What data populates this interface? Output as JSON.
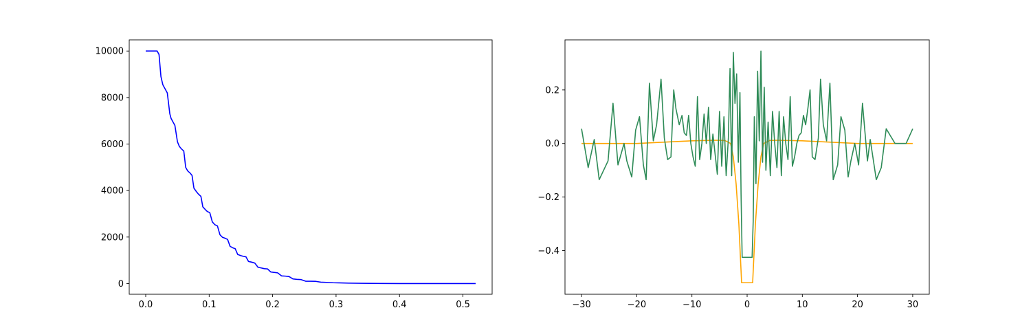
{
  "chart_data": [
    {
      "type": "line",
      "title": "",
      "xlabel": "",
      "ylabel": "",
      "xlim": [
        -0.026,
        0.546
      ],
      "ylim": [
        -460,
        10480
      ],
      "x_ticks": [
        0.0,
        0.1,
        0.2,
        0.3,
        0.4,
        0.5
      ],
      "x_tick_labels": [
        "0.0",
        "0.1",
        "0.2",
        "0.3",
        "0.4",
        "0.5"
      ],
      "y_ticks": [
        0,
        2000,
        4000,
        6000,
        8000,
        10000
      ],
      "y_tick_labels": [
        "0",
        "2000",
        "4000",
        "6000",
        "8000",
        "10000"
      ],
      "grid": false,
      "legend": "none",
      "series": [
        {
          "color": "#0000ff",
          "x": [
            0.0,
            0.018,
            0.021,
            0.024,
            0.027,
            0.03,
            0.034,
            0.038,
            0.04,
            0.043,
            0.046,
            0.05,
            0.053,
            0.056,
            0.06,
            0.063,
            0.066,
            0.07,
            0.073,
            0.076,
            0.08,
            0.083,
            0.087,
            0.09,
            0.094,
            0.097,
            0.101,
            0.105,
            0.109,
            0.113,
            0.117,
            0.121,
            0.125,
            0.129,
            0.133,
            0.137,
            0.141,
            0.145,
            0.15,
            0.154,
            0.158,
            0.162,
            0.167,
            0.172,
            0.177,
            0.182,
            0.187,
            0.192,
            0.197,
            0.202,
            0.208,
            0.214,
            0.22,
            0.226,
            0.232,
            0.238,
            0.245,
            0.252,
            0.26,
            0.268,
            0.276,
            0.285,
            0.295,
            0.305,
            0.32,
            0.34,
            0.37,
            0.4,
            0.45,
            0.52
          ],
          "y": [
            10000,
            10000,
            9850,
            8900,
            8550,
            8400,
            8200,
            7300,
            7100,
            6950,
            6800,
            6100,
            5900,
            5800,
            5700,
            5000,
            4850,
            4750,
            4650,
            4100,
            3950,
            3850,
            3750,
            3300,
            3180,
            3100,
            3050,
            2650,
            2530,
            2480,
            2100,
            1990,
            1950,
            1900,
            1600,
            1540,
            1500,
            1250,
            1200,
            1170,
            1150,
            950,
            920,
            880,
            700,
            670,
            640,
            630,
            500,
            480,
            460,
            330,
            320,
            300,
            200,
            180,
            170,
            100,
            100,
            95,
            60,
            50,
            35,
            30,
            20,
            10,
            5,
            0,
            0,
            0
          ]
        }
      ]
    },
    {
      "type": "line",
      "title": "",
      "xlabel": "",
      "ylabel": "",
      "xlim": [
        -33,
        33
      ],
      "ylim": [
        -0.563,
        0.387
      ],
      "x_ticks": [
        -30,
        -20,
        -10,
        0,
        10,
        20,
        30
      ],
      "x_tick_labels": [
        "−30",
        "−20",
        "−10",
        "0",
        "10",
        "20",
        "30"
      ],
      "y_ticks": [
        -0.4,
        -0.2,
        0.0,
        0.2
      ],
      "y_tick_labels": [
        "−0.4",
        "−0.2",
        "0.0",
        "0.2"
      ],
      "grid": false,
      "legend": "none",
      "series": [
        {
          "color": "#ffa500",
          "x": [
            -30,
            -20,
            -10,
            -6,
            -5,
            -4,
            -3,
            -2.5,
            -2,
            -1.5,
            -1,
            1,
            1.5,
            2,
            2.5,
            3,
            4,
            5,
            6,
            10,
            20,
            30
          ],
          "y": [
            0.0,
            0.0,
            0.01,
            0.012,
            0.012,
            0.011,
            0.0,
            -0.05,
            -0.15,
            -0.3,
            -0.52,
            -0.52,
            -0.3,
            -0.15,
            -0.05,
            0.0,
            0.011,
            0.012,
            0.012,
            0.01,
            0.0,
            0.0
          ]
        },
        {
          "color": "#2e8b57",
          "x": [
            -30,
            -28.8,
            -27.7,
            -26.8,
            -25.2,
            -24.3,
            -23.4,
            -22.3,
            -21.8,
            -20.9,
            -20.2,
            -19.5,
            -18.8,
            -18.3,
            -17.7,
            -17.0,
            -16.4,
            -15.6,
            -15.0,
            -14.4,
            -13.8,
            -13.3,
            -12.9,
            -12.3,
            -11.8,
            -11.4,
            -11.0,
            -10.6,
            -10.2,
            -9.8,
            -9.4,
            -9.0,
            -8.6,
            -8.2,
            -7.8,
            -7.4,
            -7.0,
            -6.6,
            -6.2,
            -5.8,
            -5.4,
            -5.0,
            -4.6,
            -4.2,
            -3.8,
            -3.4,
            -3.1,
            -2.8,
            -2.5,
            -2.2,
            -1.9,
            -1.6,
            -1.3,
            -1.1,
            -0.9,
            0.9,
            1.1,
            1.3,
            1.6,
            1.9,
            2.2,
            2.5,
            2.8,
            3.1,
            3.4,
            3.8,
            4.2,
            4.6,
            5.0,
            5.4,
            5.8,
            6.2,
            6.6,
            7.0,
            7.4,
            7.8,
            8.2,
            8.6,
            9.0,
            9.4,
            9.8,
            10.2,
            10.6,
            11.0,
            11.4,
            11.8,
            12.3,
            12.9,
            13.3,
            13.8,
            14.4,
            15.0,
            15.6,
            16.4,
            17.0,
            17.7,
            18.3,
            18.8,
            19.5,
            20.2,
            20.9,
            21.8,
            22.3,
            23.4,
            24.3,
            25.2,
            26.8,
            27.7,
            28.8,
            30
          ],
          "y": [
            0.055,
            -0.09,
            0.015,
            -0.135,
            -0.065,
            0.15,
            -0.08,
            0.0,
            -0.065,
            -0.125,
            0.05,
            0.1,
            -0.08,
            -0.135,
            0.225,
            0.01,
            0.07,
            0.24,
            0.02,
            -0.06,
            -0.05,
            0.2,
            0.13,
            0.07,
            0.105,
            0.04,
            0.03,
            0.105,
            0.0,
            -0.05,
            -0.085,
            0.175,
            -0.06,
            0.0,
            0.11,
            0.0,
            0.135,
            -0.06,
            0.035,
            -0.04,
            -0.115,
            0.12,
            -0.085,
            0.1,
            -0.12,
            0.02,
            0.28,
            -0.12,
            0.34,
            0.15,
            0.26,
            -0.07,
            0.19,
            -0.19,
            -0.425,
            -0.425,
            -0.29,
            0.1,
            -0.15,
            0.27,
            0.01,
            0.345,
            -0.07,
            0.21,
            -0.1,
            0.08,
            -0.12,
            0.12,
            0.0,
            -0.09,
            0.12,
            -0.12,
            0.1,
            0.0,
            -0.06,
            0.175,
            -0.085,
            -0.05,
            0.0,
            0.03,
            0.04,
            0.105,
            0.07,
            0.13,
            0.2,
            -0.05,
            -0.06,
            0.02,
            0.24,
            0.07,
            0.01,
            0.225,
            -0.135,
            -0.08,
            0.1,
            0.05,
            -0.125,
            -0.065,
            0.0,
            -0.08,
            0.15,
            -0.065,
            0.015,
            -0.135,
            -0.09,
            0.055,
            0.0,
            0.0,
            0.0,
            0.055
          ]
        }
      ]
    }
  ]
}
